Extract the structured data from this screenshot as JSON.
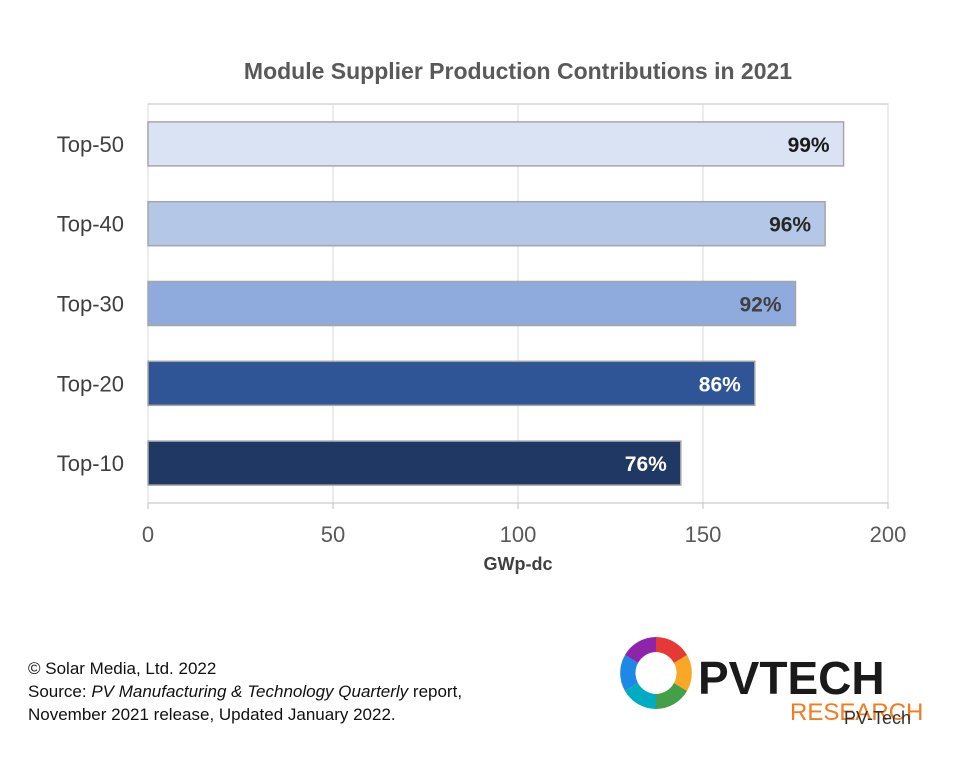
{
  "chart_data": {
    "type": "bar",
    "orientation": "horizontal",
    "title": "Module Supplier Production Contributions in 2021",
    "xlabel": "GWp-dc",
    "ylabel": "",
    "xlim": [
      0,
      200
    ],
    "xticks": [
      0,
      50,
      100,
      150,
      200
    ],
    "xtick_labels": [
      "0",
      "50",
      "100",
      "150",
      "200"
    ],
    "grid": "vertical",
    "legend": "none",
    "categories": [
      "Top-50",
      "Top-40",
      "Top-30",
      "Top-20",
      "Top-10"
    ],
    "values": [
      188,
      183,
      175,
      164,
      144
    ],
    "data_labels": [
      "99%",
      "96%",
      "92%",
      "86%",
      "76%"
    ],
    "colors": [
      "#dae3f3",
      "#b4c7e7",
      "#8faadc",
      "#2f5597",
      "#203864"
    ],
    "label_colors": [
      "#1a1a1a",
      "#262626",
      "#404040",
      "#ffffff",
      "#ffffff"
    ]
  },
  "footer": {
    "line1": "© Solar Media, Ltd. 2022",
    "line2_prefix": "Source: ",
    "line2_italic": "PV Manufacturing & Technology Quarterly",
    "line2_suffix": " report,",
    "line3": "November 2021 release, Updated January 2022."
  },
  "logo": {
    "text_main": "PVTECH",
    "text_sub": "RESEARCH",
    "watermark": "PV-Tech",
    "main_color": "#1a1a1a",
    "sub_color": "#f47b20"
  }
}
